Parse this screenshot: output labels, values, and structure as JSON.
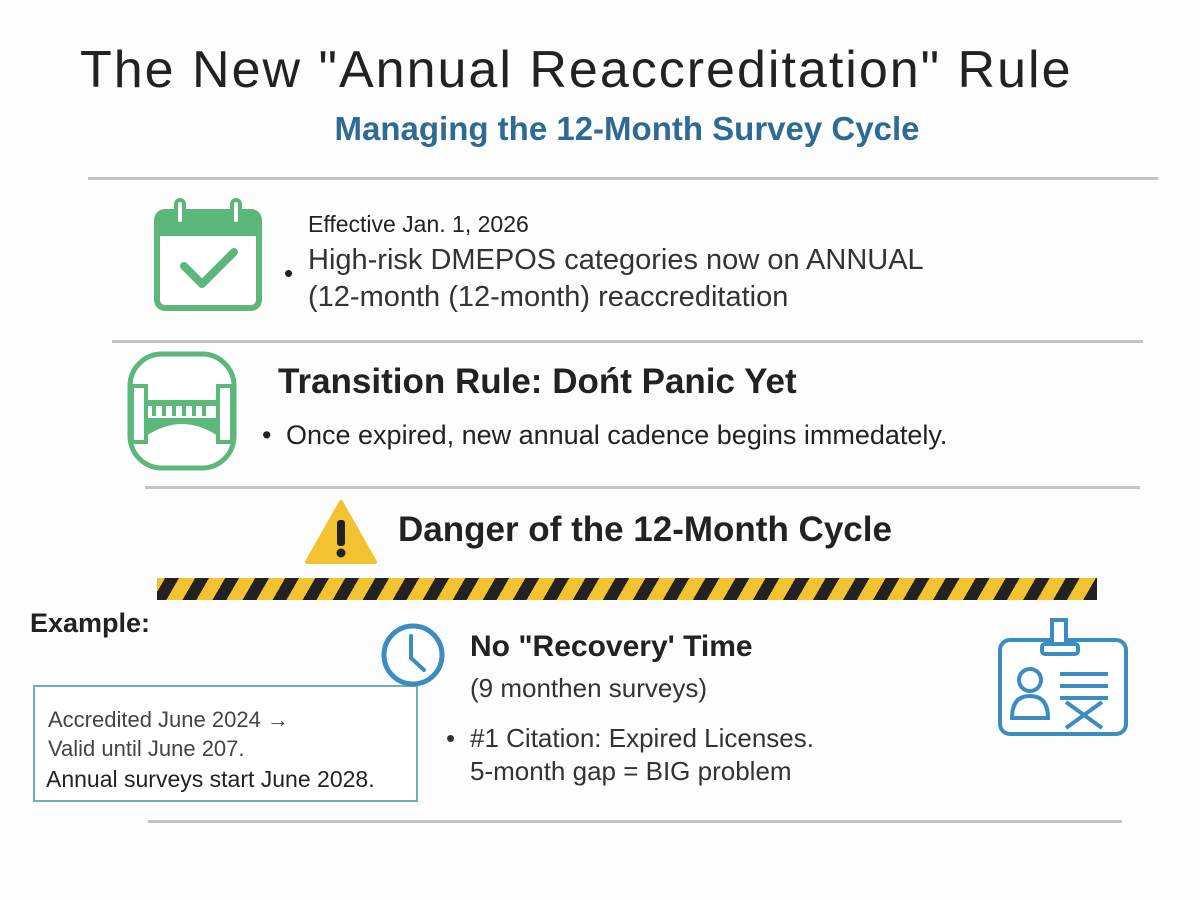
{
  "header": {
    "title": "The New \"Annual Reaccreditation\" Rule",
    "subtitle": "Managing the 12-Month Survey Cycle"
  },
  "section1": {
    "icon": "calendar-check-icon",
    "effective": "Effective Jan. 1, 2026",
    "bullet_line1": "High-risk DMEPOS categories now on ANNUAL",
    "bullet_line2": "(12-month (12-month) reaccreditation"
  },
  "section2": {
    "icon": "bridge-icon",
    "heading": "Transition Rule: Dońt Panic Yet",
    "bullet": "Once expired, new annual cadence begins immedately."
  },
  "section3": {
    "icon": "warning-icon",
    "heading": "Danger of the 12-Month Cycle"
  },
  "example": {
    "label": "Example:",
    "box_lines": [
      "Accredited June 2024 →",
      "Valid until June 207.",
      "Annual surveys start June 2028."
    ]
  },
  "recovery": {
    "icon": "clock-icon",
    "heading": "No \"Recovery' Time",
    "sub": "(9 monthen surveys)",
    "bullet_line1": "#1 Citation: Expired Licenses.",
    "bullet_line2": "5-month gap = BIG problem"
  },
  "badge": {
    "icon": "id-badge-icon"
  },
  "colors": {
    "title_blue": "#2e6a94",
    "green": "#5cb87a",
    "blue": "#3b8cc0",
    "hazard_yellow": "#f2c230",
    "box_border": "#6cb3b0"
  }
}
